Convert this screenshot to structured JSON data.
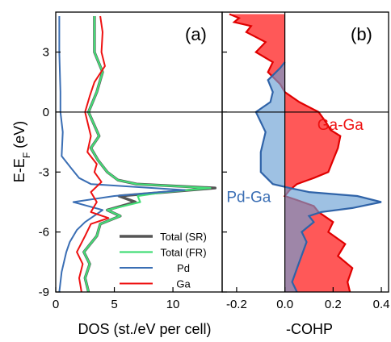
{
  "chart_data": [
    {
      "type": "line",
      "panel_label": "(a)",
      "xlabel": "DOS (st./eV per cell)",
      "ylabel": "E-E",
      "ylabel_sub": "F",
      "ylabel_unit": " (eV)",
      "xlim": [
        0,
        14.2
      ],
      "ylim": [
        -9,
        5
      ],
      "xticks": [
        0,
        5,
        10
      ],
      "yticks": [
        -9,
        -6,
        -3,
        0,
        3
      ],
      "zero_line": 0,
      "legend_position": "lower-right",
      "series": [
        {
          "name": "Total (SR)",
          "color": "#555555",
          "x": [
            2.8,
            2.5,
            2.9,
            2.4,
            3.5,
            3.8,
            5.5,
            4.4,
            6.8,
            5.4,
            9.5,
            13.6,
            6.9,
            5.3,
            4.4,
            3.6,
            3.0,
            3.7,
            2.8,
            3.5,
            4.0,
            3.3,
            3.3
          ],
          "y": [
            -9,
            -8.3,
            -7.6,
            -7,
            -6.2,
            -5.6,
            -5.2,
            -4.9,
            -4.5,
            -4.2,
            -4.0,
            -3.8,
            -3.6,
            -3.4,
            -3.0,
            -2.4,
            -1.8,
            -1.2,
            0,
            1,
            2,
            3,
            4.8
          ]
        },
        {
          "name": "Total (FR)",
          "color": "#44dd77",
          "x": [
            2.8,
            2.5,
            2.9,
            2.4,
            3.5,
            3.8,
            5.5,
            4.4,
            7.2,
            7.0,
            9.3,
            13.2,
            6.9,
            5.3,
            4.4,
            3.6,
            3.0,
            3.7,
            2.8,
            3.5,
            4.0,
            3.3,
            3.3
          ],
          "y": [
            -9,
            -8.3,
            -7.6,
            -7,
            -6.2,
            -5.6,
            -5.2,
            -4.9,
            -4.5,
            -4.2,
            -4.0,
            -3.8,
            -3.6,
            -3.4,
            -3.0,
            -2.4,
            -1.8,
            -1.2,
            0,
            1,
            2,
            3,
            4.8
          ]
        },
        {
          "name": "Pd",
          "color": "#3a6eb4",
          "x": [
            0.3,
            0.5,
            0.9,
            1.2,
            1.8,
            2.5,
            4.0,
            1.5,
            5.0,
            11.0,
            3.0,
            2.0,
            1.3,
            0.5,
            0.6,
            0.4,
            0.4,
            0.3,
            0.3
          ],
          "y": [
            -9,
            -8,
            -7,
            -6.5,
            -5.9,
            -5.5,
            -4.9,
            -4.5,
            -4.2,
            -3.9,
            -3.6,
            -3.3,
            -2.8,
            -2.2,
            -1,
            0,
            1,
            3,
            4.8
          ]
        },
        {
          "name": "Ga",
          "color": "#ee1111",
          "x": [
            2.2,
            2.0,
            2.3,
            1.8,
            2.5,
            3.0,
            4.5,
            3.0,
            3.5,
            3.0,
            3.9,
            3.3,
            3.5,
            2.7,
            3.0,
            2.5,
            2.9,
            3.3,
            4.2,
            3.9,
            4.0,
            3.8
          ],
          "y": [
            -9,
            -8.3,
            -7.6,
            -7,
            -6.2,
            -5.6,
            -5.3,
            -5.0,
            -4.5,
            -4.0,
            -3.5,
            -3.0,
            -2.6,
            -2.0,
            -1.2,
            0,
            0.8,
            1.5,
            2.3,
            3,
            4,
            4.8
          ]
        }
      ]
    },
    {
      "type": "area",
      "panel_label": "(b)",
      "xlabel": "-COHP",
      "xlim": [
        -0.26,
        0.43
      ],
      "ylim": [
        -9,
        5
      ],
      "xticks": [
        -0.2,
        0.0,
        0.2,
        0.4
      ],
      "xtick_labels": [
        "-0.2",
        "0.0",
        "0.2",
        "0.4"
      ],
      "yticks": [
        -9,
        -6,
        -3,
        0,
        3
      ],
      "zero_line": 0,
      "series": [
        {
          "name": "Ga-Ga",
          "color": "#ff4a4a",
          "x": [
            0.27,
            0.26,
            0.28,
            0.22,
            0.25,
            0.18,
            0.2,
            0.14,
            0.12,
            0.05,
            0.0,
            0.02,
            0.05,
            0.12,
            0.18,
            0.2,
            0.22,
            0.23,
            0.19,
            0.17,
            0.14,
            0.06,
            0.0,
            -0.02,
            -0.07,
            -0.05,
            -0.12,
            -0.08,
            -0.16,
            -0.14,
            -0.21,
            -0.19,
            -0.23
          ],
          "y": [
            -9,
            -8.5,
            -7.8,
            -7.2,
            -6.6,
            -6,
            -5.5,
            -5,
            -4.7,
            -4.4,
            -4.2,
            -3.9,
            -3.6,
            -3.3,
            -3,
            -2.4,
            -1.8,
            -1.2,
            -0.9,
            -0.5,
            0,
            0.5,
            1,
            1.4,
            2,
            2.5,
            3,
            3.5,
            4,
            4.3,
            4.5,
            4.7,
            4.9
          ]
        },
        {
          "name": "Pd-Ga",
          "color": "#6aa0d4",
          "x": [
            0.05,
            0.03,
            0.06,
            0.09,
            0.07,
            0.12,
            0.1,
            0.15,
            0.28,
            0.4,
            0.3,
            0.1,
            0.02,
            -0.05,
            -0.1,
            -0.1,
            -0.08,
            -0.12,
            -0.06,
            -0.05,
            -0.07,
            -0.02,
            0.0
          ],
          "y": [
            -9,
            -8.5,
            -7.5,
            -6.5,
            -6,
            -5.5,
            -5.2,
            -5,
            -4.8,
            -4.5,
            -4.2,
            -4,
            -3.8,
            -3.6,
            -3,
            -2,
            -1,
            0,
            0.5,
            1,
            1.6,
            2.2,
            2.5
          ]
        }
      ],
      "annotations": [
        {
          "text": "Ga-Ga",
          "x": 0.23,
          "y": -0.9,
          "color": "#ee1111"
        },
        {
          "text": "Pd-Ga",
          "x": -0.15,
          "y": -4.5,
          "color": "#3a6eb4"
        }
      ]
    }
  ]
}
